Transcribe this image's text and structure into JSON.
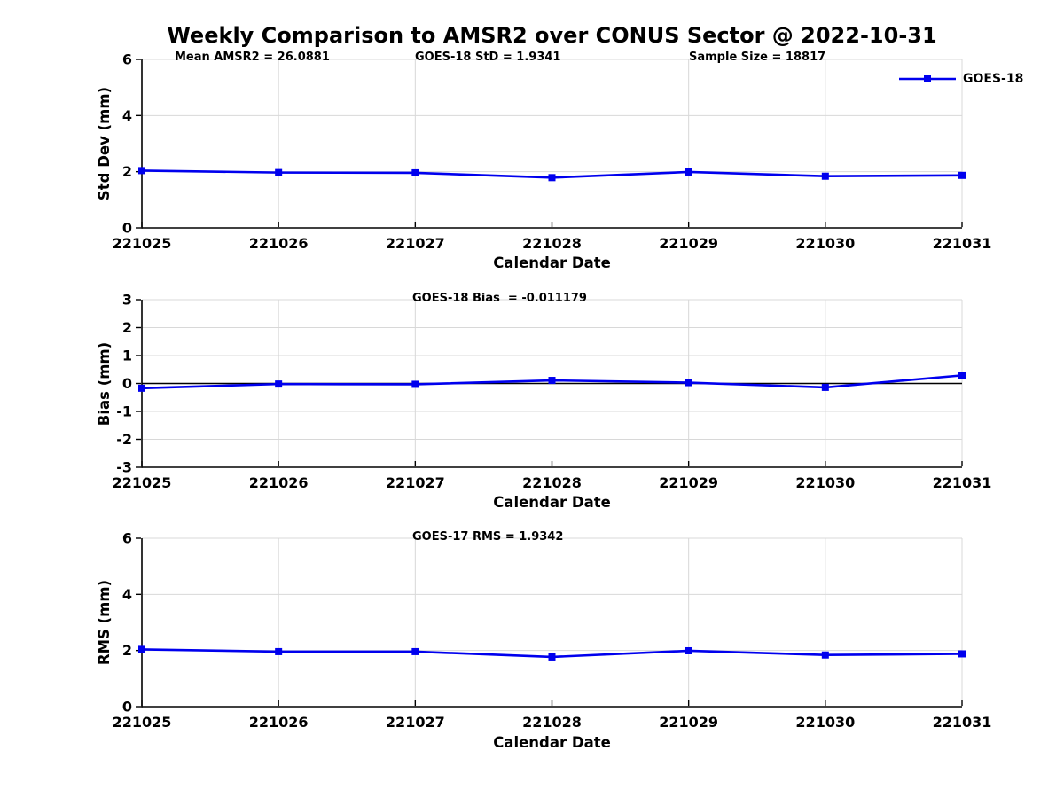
{
  "title": "Weekly Comparison to AMSR2 over CONUS Sector @ 2022-10-31",
  "legend": {
    "label": "GOES-18"
  },
  "colors": {
    "line": "#0000EE",
    "marker": "#0000EE",
    "grid": "#D8D8D8",
    "axis": "#000000",
    "zero_line": "#000000",
    "background": "#FFFFFF",
    "text": "#000000"
  },
  "chart_data": [
    {
      "type": "line",
      "panel": "std-dev",
      "annotations": [
        "Mean AMSR2 = 26.0881",
        "GOES-18 StD = 1.9341",
        "Sample Size = 18817"
      ],
      "categories": [
        "221025",
        "221026",
        "221027",
        "221028",
        "221029",
        "221030",
        "221031"
      ],
      "series": [
        {
          "name": "GOES-18",
          "values": [
            2.04,
            1.97,
            1.96,
            1.79,
            1.99,
            1.84,
            1.87
          ]
        }
      ],
      "xlabel": "Calendar Date",
      "ylabel": "Std Dev (mm)",
      "ylim": [
        0,
        6
      ],
      "yticks": [
        0,
        2,
        4,
        6
      ],
      "grid": true,
      "zero_line": false,
      "legend_position": "top-right"
    },
    {
      "type": "line",
      "panel": "bias",
      "annotations": [
        "GOES-18 Bias  = -0.011179"
      ],
      "categories": [
        "221025",
        "221026",
        "221027",
        "221028",
        "221029",
        "221030",
        "221031"
      ],
      "series": [
        {
          "name": "GOES-18",
          "values": [
            -0.17,
            -0.02,
            -0.03,
            0.11,
            0.03,
            -0.14,
            0.29
          ]
        }
      ],
      "xlabel": "Calendar Date",
      "ylabel": "Bias (mm)",
      "ylim": [
        -3,
        3
      ],
      "yticks": [
        -3,
        -2,
        -1,
        0,
        1,
        2,
        3
      ],
      "grid": true,
      "zero_line": true,
      "legend_position": "none"
    },
    {
      "type": "line",
      "panel": "rms",
      "annotations": [
        "GOES-17 RMS = 1.9342"
      ],
      "categories": [
        "221025",
        "221026",
        "221027",
        "221028",
        "221029",
        "221030",
        "221031"
      ],
      "series": [
        {
          "name": "GOES-18",
          "values": [
            2.04,
            1.96,
            1.96,
            1.77,
            1.99,
            1.84,
            1.88
          ]
        }
      ],
      "xlabel": "Calendar Date",
      "ylabel": "RMS (mm)",
      "ylim": [
        0,
        6
      ],
      "yticks": [
        0,
        2,
        4,
        6
      ],
      "grid": true,
      "zero_line": false,
      "legend_position": "none"
    }
  ]
}
